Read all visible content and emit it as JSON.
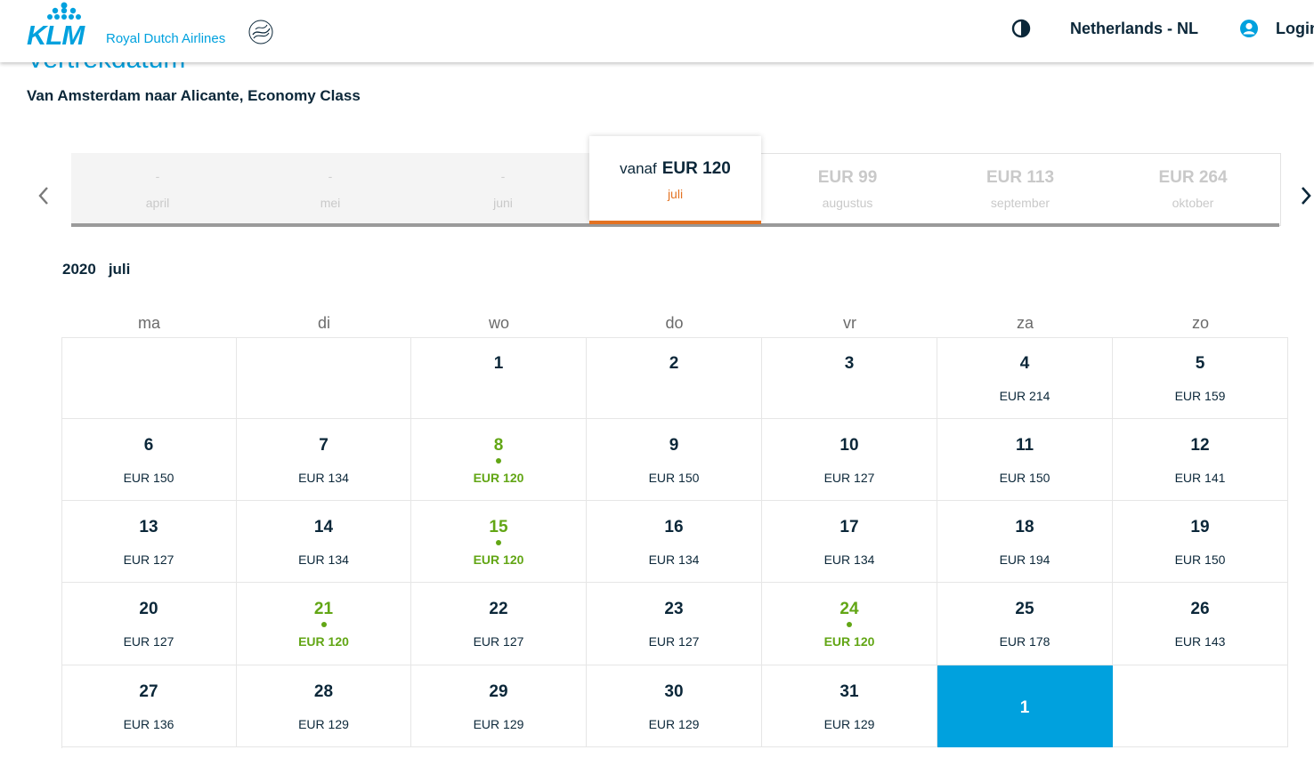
{
  "header": {
    "brand": "KLM",
    "brand_sub": "Royal Dutch Airlines",
    "country": "Netherlands - NL",
    "login": "Login",
    "brand_color": "#00a1de"
  },
  "page": {
    "title": "Vertrekdatum",
    "route": "Van Amsterdam naar Alicante, Economy Class"
  },
  "months": [
    {
      "name": "april",
      "price": "-",
      "disabled": true
    },
    {
      "name": "mei",
      "price": "-",
      "disabled": true
    },
    {
      "name": "juni",
      "price": "-",
      "disabled": true
    },
    {
      "name": "juli",
      "price": "EUR 120",
      "prefix": "vanaf",
      "selected": true
    },
    {
      "name": "augustus",
      "price": "EUR 99"
    },
    {
      "name": "september",
      "price": "EUR 113"
    },
    {
      "name": "oktober",
      "price": "EUR 264"
    }
  ],
  "calendar": {
    "year": "2020",
    "month": "juli",
    "weekdays": [
      "ma",
      "di",
      "wo",
      "do",
      "vr",
      "za",
      "zo"
    ],
    "accent_low_price": "#62a615",
    "accent_selected_month": "#e37222",
    "days": [
      {
        "day": "1",
        "price": ""
      },
      {
        "day": "2",
        "price": ""
      },
      {
        "day": "3",
        "price": ""
      },
      {
        "day": "4",
        "price": "EUR 214"
      },
      {
        "day": "5",
        "price": "EUR 159"
      },
      {
        "day": "6",
        "price": "EUR 150"
      },
      {
        "day": "7",
        "price": "EUR 134"
      },
      {
        "day": "8",
        "price": "EUR 120",
        "lowest": true
      },
      {
        "day": "9",
        "price": "EUR 150"
      },
      {
        "day": "10",
        "price": "EUR 127"
      },
      {
        "day": "11",
        "price": "EUR 150"
      },
      {
        "day": "12",
        "price": "EUR 141"
      },
      {
        "day": "13",
        "price": "EUR 127"
      },
      {
        "day": "14",
        "price": "EUR 134"
      },
      {
        "day": "15",
        "price": "EUR 120",
        "lowest": true
      },
      {
        "day": "16",
        "price": "EUR 134"
      },
      {
        "day": "17",
        "price": "EUR 134"
      },
      {
        "day": "18",
        "price": "EUR 194"
      },
      {
        "day": "19",
        "price": "EUR 150"
      },
      {
        "day": "20",
        "price": "EUR 127"
      },
      {
        "day": "21",
        "price": "EUR 120",
        "lowest": true
      },
      {
        "day": "22",
        "price": "EUR 127"
      },
      {
        "day": "23",
        "price": "EUR 127"
      },
      {
        "day": "24",
        "price": "EUR 120",
        "lowest": true
      },
      {
        "day": "25",
        "price": "EUR 178"
      },
      {
        "day": "26",
        "price": "EUR 143"
      },
      {
        "day": "27",
        "price": "EUR 136"
      },
      {
        "day": "28",
        "price": "EUR 129"
      },
      {
        "day": "29",
        "price": "EUR 129"
      },
      {
        "day": "30",
        "price": "EUR 129"
      },
      {
        "day": "31",
        "price": "EUR 129"
      }
    ],
    "next_month_tile": "1"
  }
}
